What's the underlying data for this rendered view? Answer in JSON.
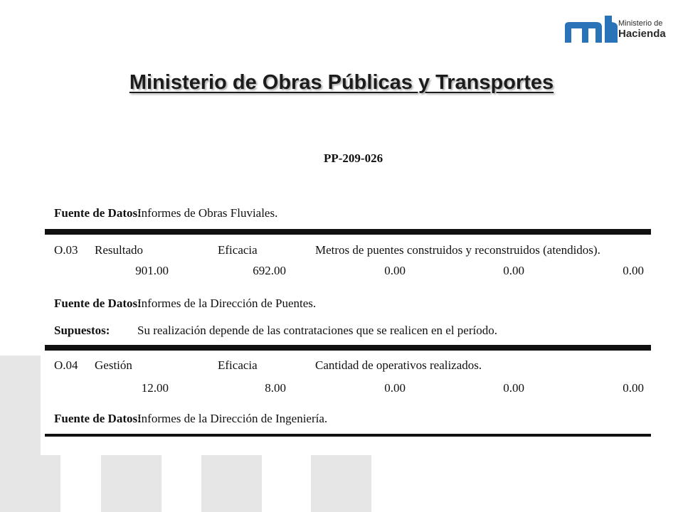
{
  "logo": {
    "icon": "ministerio-hacienda-logo",
    "line1": "Ministerio de",
    "line2": "Hacienda",
    "color": "#2a73b8"
  },
  "slide_title": "Ministerio de Obras Públicas y Transportes",
  "document": {
    "code": "PP-209-026",
    "fuente_label": "Fuente de Datos:",
    "supuestos_label": "Supuestos:",
    "top_source": "Informes de Obras Fluviales.",
    "indicators": [
      {
        "id": "O.03",
        "type": "Resultado",
        "dimension": "Eficacia",
        "description": "Metros de puentes construidos y reconstruidos (atendidos).",
        "values": [
          "901.00",
          "692.00",
          "0.00",
          "0.00",
          "0.00"
        ],
        "source": "Informes de la Dirección de Puentes.",
        "assumption": "Su realización depende de las contrataciones que se realicen en el período."
      },
      {
        "id": "O.04",
        "type": "Gestión",
        "dimension": "Eficacia",
        "description": "Cantidad de operativos realizados.",
        "values": [
          "12.00",
          "8.00",
          "0.00",
          "0.00",
          "0.00"
        ],
        "source": "Informes de la Dirección de Ingeniería."
      }
    ]
  }
}
